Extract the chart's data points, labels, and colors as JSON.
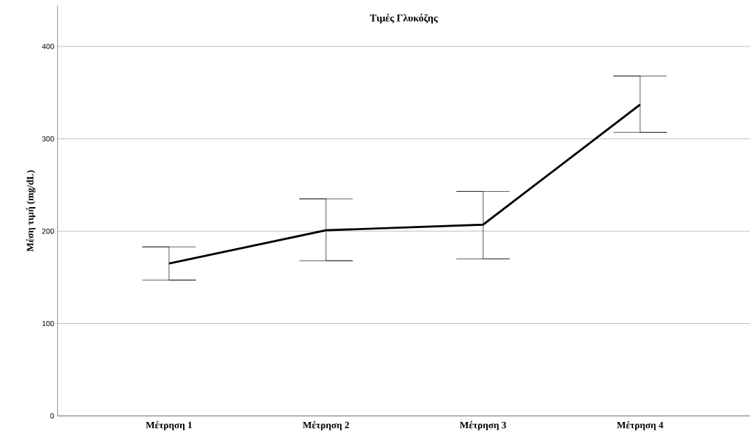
{
  "chart_data": {
    "type": "line",
    "title": "Τιμές Γλυκόζης",
    "ylabel": "Μέση τιμή (mg/dL)",
    "categories": [
      "Μέτρηση 1",
      "Μέτρηση 2",
      "Μέτρηση 3",
      "Μέτρηση 4"
    ],
    "series": [
      {
        "color": "#000000",
        "values": [
          165,
          201,
          207,
          337
        ],
        "errors": [
          [
            147,
            183
          ],
          [
            168,
            235
          ],
          [
            170,
            243
          ],
          [
            307,
            368
          ]
        ]
      }
    ],
    "ylim": [
      0,
      444
    ],
    "yticks": [
      0,
      100,
      200,
      300,
      400
    ],
    "grid": "y",
    "marker": "none",
    "line_style": "solid"
  }
}
